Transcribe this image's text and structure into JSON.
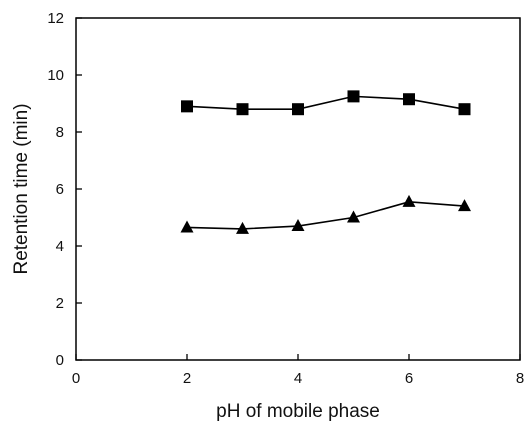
{
  "chart_data": {
    "type": "line",
    "title": "",
    "xlabel": "pH of mobile phase",
    "ylabel": "Retention time (min)",
    "xlim": [
      0,
      8
    ],
    "ylim": [
      0,
      12
    ],
    "xticks": [
      "0",
      "2",
      "4",
      "6",
      "8"
    ],
    "yticks": [
      "0",
      "2",
      "4",
      "6",
      "8",
      "10",
      "12"
    ],
    "grid": false,
    "legend": "none",
    "x": [
      2,
      3,
      4,
      5,
      6,
      7
    ],
    "series": [
      {
        "marker": "square",
        "color": "#000000",
        "values": [
          8.9,
          8.8,
          8.8,
          9.25,
          9.15,
          8.8
        ]
      },
      {
        "marker": "triangle",
        "color": "#000000",
        "values": [
          4.65,
          4.6,
          4.7,
          5.0,
          5.55,
          5.4
        ]
      }
    ]
  }
}
